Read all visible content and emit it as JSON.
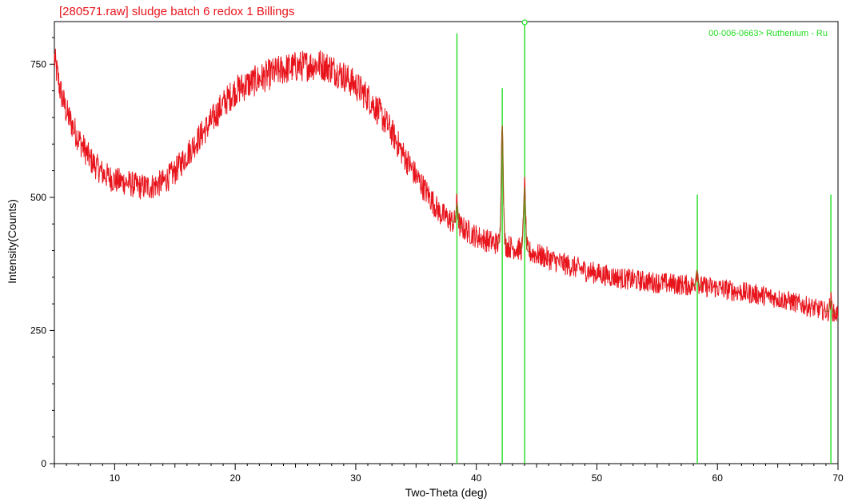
{
  "chart_data": {
    "type": "line",
    "title": "[280571.raw] sludge batch 6 redox 1 Billings",
    "xlabel": "Two-Theta (deg)",
    "ylabel": "Intensity(Counts)",
    "xlim": [
      5,
      70
    ],
    "ylim": [
      0,
      830
    ],
    "x_ticks": [
      10,
      20,
      30,
      40,
      50,
      60,
      70
    ],
    "y_ticks": [
      0,
      250,
      500,
      750
    ],
    "grid": false,
    "colors": {
      "pattern": "#e8141c",
      "reference": "#22dd22",
      "fit": "#8a6a1a"
    },
    "series": [
      {
        "type": "line",
        "points": [
          [
            5.0,
            760
          ],
          [
            5.5,
            700
          ],
          [
            6,
            660
          ],
          [
            7,
            610
          ],
          [
            8,
            570
          ],
          [
            9,
            545
          ],
          [
            10,
            532
          ],
          [
            11,
            528
          ],
          [
            12,
            520
          ],
          [
            13,
            520
          ],
          [
            14,
            528
          ],
          [
            15,
            548
          ],
          [
            16,
            580
          ],
          [
            17,
            612
          ],
          [
            18,
            642
          ],
          [
            19,
            675
          ],
          [
            20,
            700
          ],
          [
            21,
            712
          ],
          [
            22,
            722
          ],
          [
            23,
            732
          ],
          [
            24,
            740
          ],
          [
            25,
            745
          ],
          [
            26,
            748
          ],
          [
            27,
            750
          ],
          [
            28,
            742
          ],
          [
            29,
            728
          ],
          [
            30,
            710
          ],
          [
            31,
            688
          ],
          [
            32,
            658
          ],
          [
            33,
            622
          ],
          [
            34,
            578
          ],
          [
            35,
            540
          ],
          [
            36,
            505
          ],
          [
            37,
            470
          ],
          [
            38,
            455
          ],
          [
            39,
            440
          ],
          [
            40,
            427
          ],
          [
            41,
            418
          ],
          [
            42,
            412
          ],
          [
            43,
            406
          ],
          [
            44,
            400
          ],
          [
            45,
            393
          ],
          [
            46,
            385
          ],
          [
            47,
            377
          ],
          [
            48,
            370
          ],
          [
            49,
            363
          ],
          [
            50,
            357
          ],
          [
            52,
            348
          ],
          [
            54,
            342
          ],
          [
            56,
            338
          ],
          [
            58,
            334
          ],
          [
            60,
            330
          ],
          [
            62,
            322
          ],
          [
            64,
            315
          ],
          [
            66,
            305
          ],
          [
            68,
            292
          ],
          [
            70,
            280
          ]
        ],
        "peaks": [
          [
            38.4,
            40
          ],
          [
            42.15,
            225
          ],
          [
            44.0,
            120
          ],
          [
            58.3,
            30
          ],
          [
            69.4,
            22
          ]
        ]
      }
    ],
    "reference_pattern": {
      "label": "00-006-0663> Ruthenium - Ru",
      "lines": [
        [
          38.39,
          808
        ],
        [
          42.15,
          705
        ],
        [
          44.01,
          830
        ],
        [
          58.33,
          505
        ],
        [
          69.41,
          505
        ]
      ]
    }
  }
}
